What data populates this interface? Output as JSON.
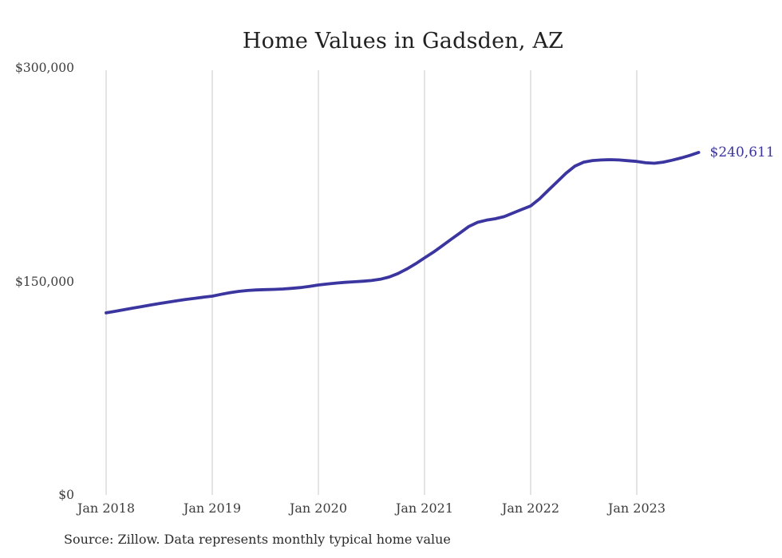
{
  "chart": {
    "title": "Home Values in Gadsden, AZ",
    "source_note": "Source: Zillow. Data represents monthly typical home value",
    "end_label": "$240,611",
    "colors": {
      "line": "#3b35a0",
      "end_label_text": "#3b35a0",
      "grid": "#c9c9c9",
      "axis_text": "#3d3d3d",
      "title_text": "#212121",
      "source_text": "#2b2b2b",
      "background": "#ffffff"
    }
  },
  "chart_data": {
    "type": "line",
    "title": "Home Values in Gadsden, AZ",
    "xlabel": "",
    "ylabel": "",
    "x_unit": "month",
    "x_start": "Jan 2018",
    "x_end": "Aug 2023",
    "ylim": [
      0,
      300000
    ],
    "grid": "vertical-only",
    "legend": "none",
    "y_ticks": [
      {
        "label": "$300,000",
        "value": 300000
      },
      {
        "label": "$150,000",
        "value": 150000
      },
      {
        "label": "$0",
        "value": 0
      }
    ],
    "x_ticks": [
      {
        "label": "Jan 2018",
        "month_index": 0
      },
      {
        "label": "Jan 2019",
        "month_index": 12
      },
      {
        "label": "Jan 2020",
        "month_index": 24
      },
      {
        "label": "Jan 2021",
        "month_index": 36
      },
      {
        "label": "Jan 2022",
        "month_index": 48
      },
      {
        "label": "Jan 2023",
        "month_index": 60
      }
    ],
    "series": [
      {
        "name": "Monthly typical home value",
        "final_value": 240611,
        "final_value_label": "$240,611",
        "values": [
          127900,
          129000,
          130100,
          131200,
          132300,
          133400,
          134400,
          135400,
          136400,
          137300,
          138100,
          138900,
          139600,
          140900,
          142100,
          143000,
          143600,
          144000,
          144200,
          144400,
          144700,
          145100,
          145700,
          146500,
          147500,
          148200,
          148800,
          149300,
          149700,
          150100,
          150600,
          151500,
          153100,
          155500,
          158700,
          162400,
          166500,
          170500,
          175000,
          179500,
          184000,
          188500,
          191500,
          193000,
          194000,
          195500,
          198000,
          200500,
          203000,
          208000,
          214000,
          220000,
          226000,
          231000,
          233800,
          234900,
          235300,
          235500,
          235300,
          234800,
          234300,
          233300,
          233000,
          233800,
          235100,
          236700,
          238500,
          240611
        ]
      }
    ]
  }
}
